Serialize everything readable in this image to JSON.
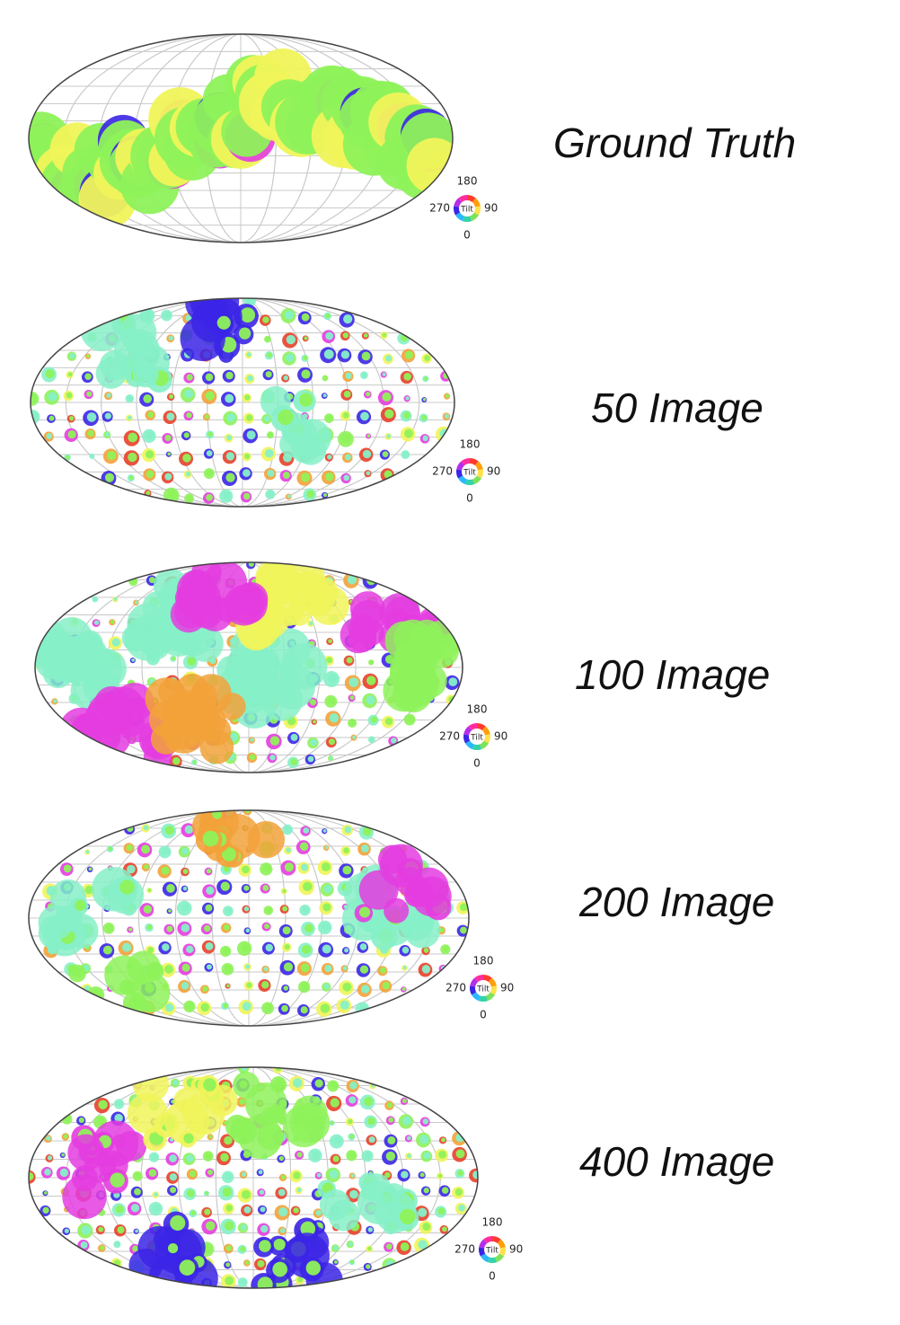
{
  "figure": {
    "panels": [
      {
        "caption": "Ground Truth",
        "style": "truth"
      },
      {
        "caption": "50 Image",
        "style": "sparse"
      },
      {
        "caption": "100 Image",
        "style": "dense"
      },
      {
        "caption": "200 Image",
        "style": "sparse2"
      },
      {
        "caption": "400 Image",
        "style": "mixed"
      }
    ],
    "colorwheel": {
      "center_label": "Tilt",
      "top": "180",
      "left": "270",
      "right": "90",
      "bottom": "0"
    },
    "palette": {
      "green": "#8ef25a",
      "yellow": "#f0f45a",
      "aqua": "#86f0c8",
      "magenta": "#e43ce0",
      "blue": "#3b25e6",
      "red": "#e8402a",
      "orange": "#f2a23a",
      "grid": "#c8c8c8",
      "outline": "#444444"
    }
  },
  "chart_data": [
    {
      "type": "heatmap",
      "title": "Ground Truth",
      "projection": "mollweide",
      "grid": true,
      "colorbar": "Tilt (0/90/180/270)"
    },
    {
      "type": "scatter",
      "title": "50 Image",
      "projection": "mollweide",
      "grid": true,
      "colorbar": "Tilt (0/90/180/270)"
    },
    {
      "type": "scatter",
      "title": "100 Image",
      "projection": "mollweide",
      "grid": true,
      "colorbar": "Tilt (0/90/180/270)"
    },
    {
      "type": "scatter",
      "title": "200 Image",
      "projection": "mollweide",
      "grid": true,
      "colorbar": "Tilt (0/90/180/270)"
    },
    {
      "type": "scatter",
      "title": "400 Image",
      "projection": "mollweide",
      "grid": true,
      "colorbar": "Tilt (0/90/180/270)"
    }
  ]
}
